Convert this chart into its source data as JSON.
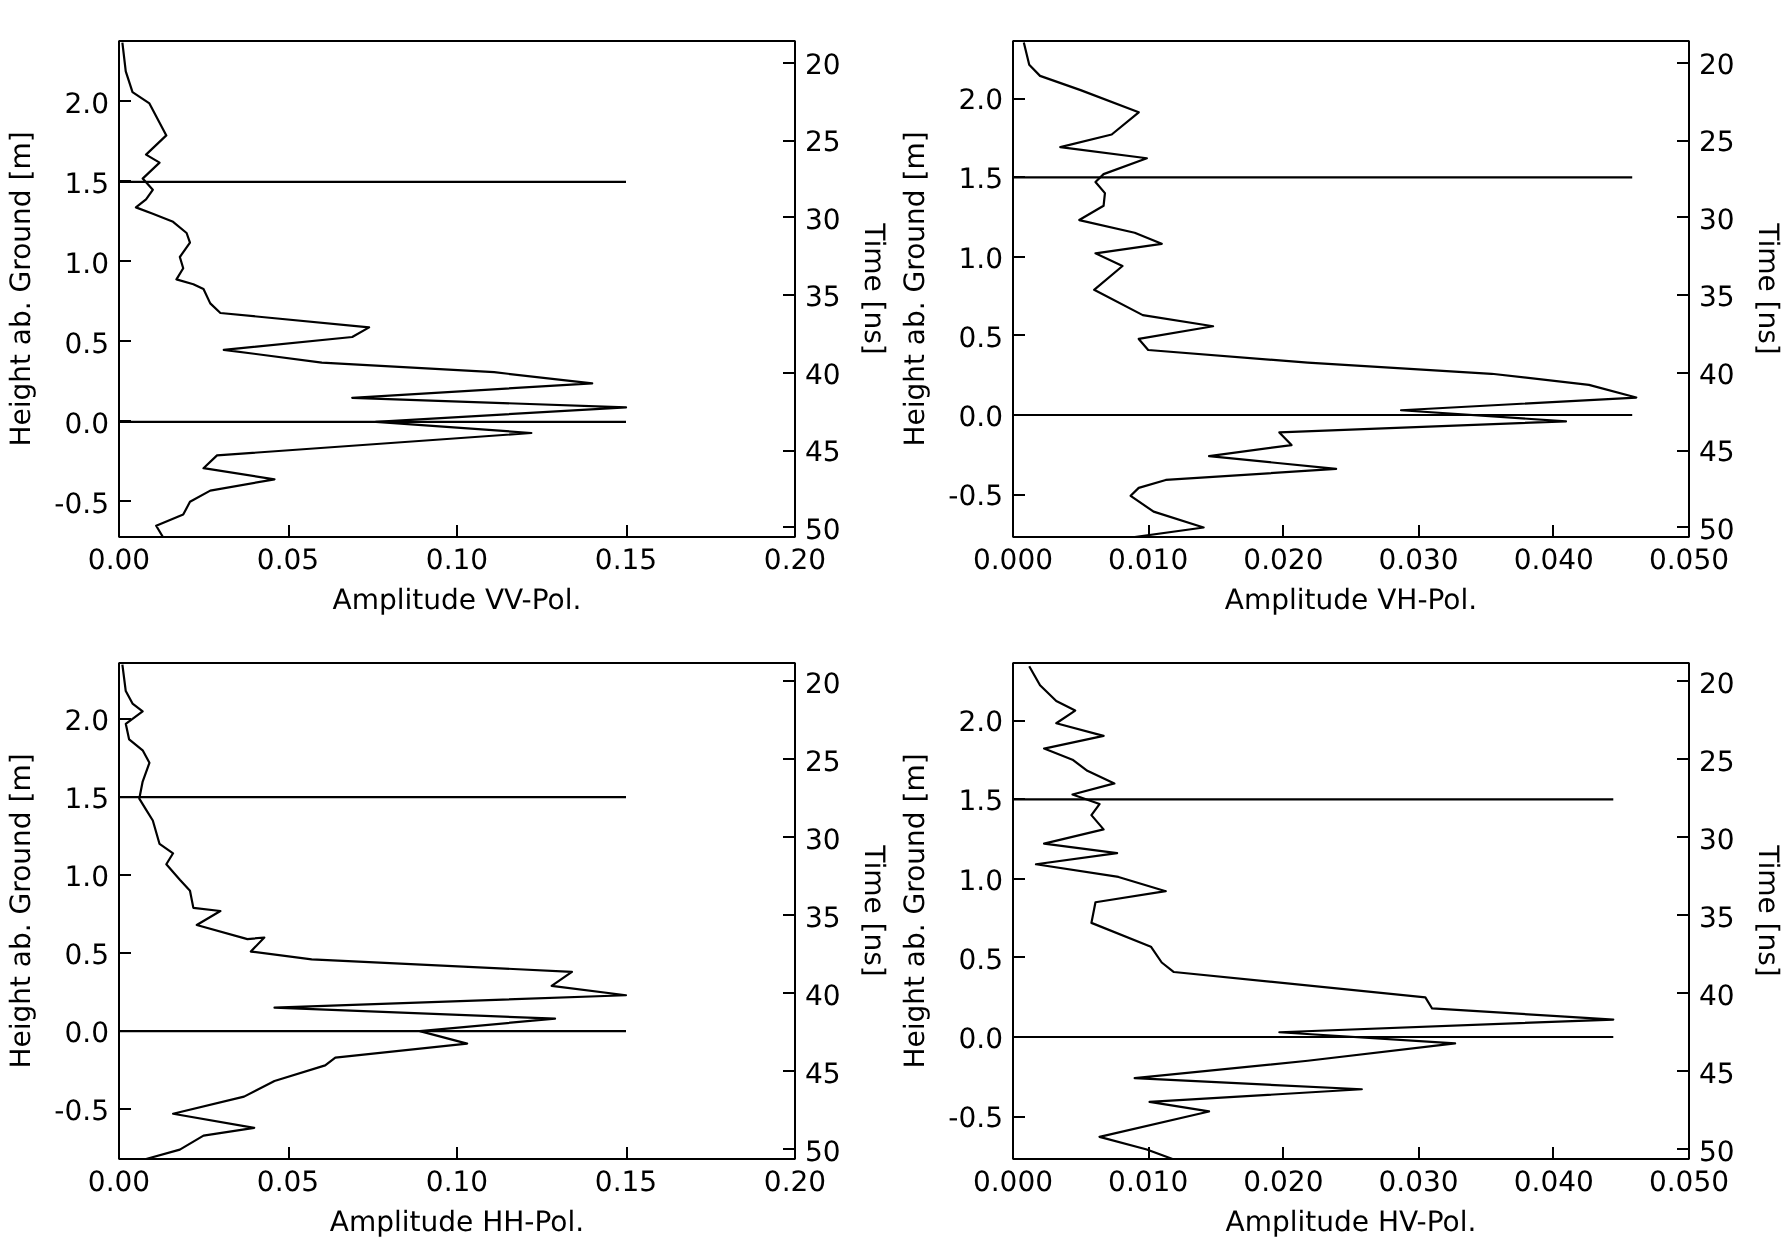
{
  "chart_data": [
    {
      "type": "line",
      "xlabel": "Amplitude VV-Pol.",
      "ylabel": "Height ab. Ground [m]",
      "y2label": "Time [ns]",
      "grid": false,
      "xlim": [
        0,
        0.2
      ],
      "xticks": [
        {
          "value": 0,
          "label": "0.00"
        },
        {
          "value": 0.05,
          "label": "0.05"
        },
        {
          "value": 0.1,
          "label": "0.10"
        },
        {
          "value": 0.15,
          "label": "0.15"
        },
        {
          "value": 0.2,
          "label": "0.20"
        }
      ],
      "ylim": [
        -0.72,
        2.38
      ],
      "yticks": [
        {
          "value": -0.5,
          "label": "-0.5"
        },
        {
          "value": 0,
          "label": "0.0"
        },
        {
          "value": 0.5,
          "label": "0.5"
        },
        {
          "value": 1,
          "label": "1.0"
        },
        {
          "value": 1.5,
          "label": "1.5"
        },
        {
          "value": 2,
          "label": "2.0"
        }
      ],
      "y2lim": [
        50.6,
        18.6
      ],
      "y2ticks": [
        20,
        25,
        30,
        35,
        40,
        45,
        50
      ],
      "series": [
        {
          "color": "#000000",
          "x": [
            0.001,
            0.002,
            0.004,
            0.009,
            0.014,
            0.008,
            0.012,
            0.007,
            0.01,
            0.008,
            0.005,
            0.01,
            0.016,
            0.02,
            0.021,
            0.018,
            0.019,
            0.017,
            0.022,
            0.025,
            0.027,
            0.03,
            0.074,
            0.069,
            0.031,
            0.06,
            0.111,
            0.14,
            0.069,
            0.15,
            0.076,
            0.122,
            0.029,
            0.025,
            0.046,
            0.027,
            0.021,
            0.019,
            0.011,
            0.013
          ],
          "values": [
            2.37,
            2.19,
            2.06,
            1.99,
            1.79,
            1.67,
            1.62,
            1.52,
            1.45,
            1.39,
            1.34,
            1.3,
            1.25,
            1.18,
            1.12,
            1.03,
            0.96,
            0.89,
            0.86,
            0.83,
            0.74,
            0.68,
            0.59,
            0.53,
            0.45,
            0.37,
            0.31,
            0.24,
            0.15,
            0.09,
            0.0,
            -0.07,
            -0.21,
            -0.29,
            -0.36,
            -0.43,
            -0.5,
            -0.58,
            -0.65,
            -0.72
          ]
        },
        {
          "color": "#000000",
          "x": [
            0,
            0.15
          ],
          "values": [
            1.5,
            1.5
          ]
        },
        {
          "color": "#000000",
          "x": [
            0,
            0.15
          ],
          "values": [
            0,
            0
          ]
        }
      ]
    },
    {
      "type": "line",
      "xlabel": "Amplitude VH-Pol.",
      "ylabel": "Height ab. Ground [m]",
      "y2label": "Time [ns]",
      "grid": false,
      "xlim": [
        0,
        0.05
      ],
      "xticks": [
        {
          "value": 0,
          "label": "0.000"
        },
        {
          "value": 0.01,
          "label": "0.010"
        },
        {
          "value": 0.02,
          "label": "0.020"
        },
        {
          "value": 0.03,
          "label": "0.030"
        },
        {
          "value": 0.04,
          "label": "0.040"
        },
        {
          "value": 0.05,
          "label": "0.050"
        }
      ],
      "ylim": [
        -0.77,
        2.36
      ],
      "yticks": [
        {
          "value": -0.5,
          "label": "-0.5"
        },
        {
          "value": 0,
          "label": "0.0"
        },
        {
          "value": 0.5,
          "label": "0.5"
        },
        {
          "value": 1,
          "label": "1.0"
        },
        {
          "value": 1.5,
          "label": "1.5"
        },
        {
          "value": 2,
          "label": "2.0"
        }
      ],
      "y2lim": [
        50.6,
        18.6
      ],
      "y2ticks": [
        20,
        25,
        30,
        35,
        40,
        45,
        50
      ],
      "series": [
        {
          "color": "#000000",
          "x": [
            0.0008,
            0.0012,
            0.002,
            0.005,
            0.0093,
            0.0073,
            0.0035,
            0.0099,
            0.0067,
            0.0061,
            0.0068,
            0.0067,
            0.0049,
            0.009,
            0.011,
            0.0061,
            0.0081,
            0.006,
            0.0096,
            0.0148,
            0.0093,
            0.01,
            0.0218,
            0.0354,
            0.0426,
            0.0461,
            0.0287,
            0.0409,
            0.0197,
            0.0206,
            0.0145,
            0.0239,
            0.0113,
            0.0093,
            0.0087,
            0.0104,
            0.0141,
            0.009
          ],
          "values": [
            2.35,
            2.21,
            2.14,
            2.05,
            1.91,
            1.77,
            1.69,
            1.62,
            1.52,
            1.47,
            1.4,
            1.32,
            1.23,
            1.15,
            1.08,
            1.02,
            0.94,
            0.79,
            0.63,
            0.56,
            0.48,
            0.41,
            0.33,
            0.26,
            0.19,
            0.11,
            0.03,
            -0.04,
            -0.11,
            -0.19,
            -0.26,
            -0.34,
            -0.41,
            -0.46,
            -0.51,
            -0.61,
            -0.71,
            -0.77
          ]
        },
        {
          "color": "#000000",
          "x": [
            0,
            0.0458
          ],
          "values": [
            1.5,
            1.5
          ]
        },
        {
          "color": "#000000",
          "x": [
            0,
            0.0458
          ],
          "values": [
            0,
            0
          ]
        }
      ]
    },
    {
      "type": "line",
      "xlabel": "Amplitude HH-Pol.",
      "ylabel": "Height ab. Ground [m]",
      "y2label": "Time [ns]",
      "grid": false,
      "xlim": [
        0,
        0.2
      ],
      "xticks": [
        {
          "value": 0,
          "label": "0.00"
        },
        {
          "value": 0.05,
          "label": "0.05"
        },
        {
          "value": 0.1,
          "label": "0.10"
        },
        {
          "value": 0.15,
          "label": "0.15"
        },
        {
          "value": 0.2,
          "label": "0.20"
        }
      ],
      "ylim": [
        -0.82,
        2.36
      ],
      "yticks": [
        {
          "value": -0.5,
          "label": "-0.5"
        },
        {
          "value": 0,
          "label": "0.0"
        },
        {
          "value": 0.5,
          "label": "0.5"
        },
        {
          "value": 1,
          "label": "1.0"
        },
        {
          "value": 1.5,
          "label": "1.5"
        },
        {
          "value": 2,
          "label": "2.0"
        }
      ],
      "y2lim": [
        50.6,
        18.8
      ],
      "y2ticks": [
        20,
        25,
        30,
        35,
        40,
        45,
        50
      ],
      "series": [
        {
          "color": "#000000",
          "x": [
            0.001,
            0.002,
            0.004,
            0.007,
            0.002,
            0.003,
            0.007,
            0.009,
            0.007,
            0.006,
            0.008,
            0.01,
            0.012,
            0.016,
            0.014,
            0.018,
            0.021,
            0.022,
            0.03,
            0.023,
            0.038,
            0.043,
            0.039,
            0.057,
            0.134,
            0.128,
            0.15,
            0.046,
            0.129,
            0.089,
            0.103,
            0.064,
            0.061,
            0.046,
            0.037,
            0.016,
            0.04,
            0.025,
            0.018,
            0.008
          ],
          "values": [
            2.35,
            2.18,
            2.1,
            2.05,
            1.97,
            1.87,
            1.8,
            1.72,
            1.6,
            1.49,
            1.42,
            1.35,
            1.2,
            1.14,
            1.07,
            0.97,
            0.9,
            0.79,
            0.77,
            0.68,
            0.59,
            0.6,
            0.51,
            0.46,
            0.38,
            0.29,
            0.23,
            0.15,
            0.08,
            0.0,
            -0.08,
            -0.17,
            -0.22,
            -0.32,
            -0.42,
            -0.53,
            -0.62,
            -0.67,
            -0.76,
            -0.82
          ]
        },
        {
          "color": "#000000",
          "x": [
            0,
            0.15
          ],
          "values": [
            1.5,
            1.5
          ]
        },
        {
          "color": "#000000",
          "x": [
            0,
            0.15
          ],
          "values": [
            0,
            0
          ]
        }
      ]
    },
    {
      "type": "line",
      "xlabel": "Amplitude HV-Pol.",
      "ylabel": "Height ab. Ground [m]",
      "y2label": "Time [ns]",
      "grid": false,
      "xlim": [
        0,
        0.05
      ],
      "xticks": [
        {
          "value": 0,
          "label": "0.000"
        },
        {
          "value": 0.01,
          "label": "0.010"
        },
        {
          "value": 0.02,
          "label": "0.020"
        },
        {
          "value": 0.03,
          "label": "0.030"
        },
        {
          "value": 0.04,
          "label": "0.040"
        },
        {
          "value": 0.05,
          "label": "0.050"
        }
      ],
      "ylim": [
        -0.77,
        2.36
      ],
      "yticks": [
        {
          "value": -0.5,
          "label": "-0.5"
        },
        {
          "value": 0,
          "label": "0.0"
        },
        {
          "value": 0.5,
          "label": "0.5"
        },
        {
          "value": 1,
          "label": "1.0"
        },
        {
          "value": 1.5,
          "label": "1.5"
        },
        {
          "value": 2,
          "label": "2.0"
        }
      ],
      "y2lim": [
        50.6,
        18.8
      ],
      "y2ticks": [
        20,
        25,
        30,
        35,
        40,
        45,
        50
      ],
      "series": [
        {
          "color": "#000000",
          "x": [
            0.0012,
            0.002,
            0.0032,
            0.0046,
            0.0032,
            0.0067,
            0.0023,
            0.0044,
            0.0055,
            0.0075,
            0.0044,
            0.0064,
            0.0058,
            0.0067,
            0.0023,
            0.0077,
            0.0017,
            0.0078,
            0.0113,
            0.0061,
            0.0058,
            0.0102,
            0.011,
            0.0119,
            0.0305,
            0.031,
            0.0444,
            0.0197,
            0.0327,
            0.0218,
            0.009,
            0.0258,
            0.0101,
            0.0145,
            0.0064,
            0.0099,
            0.0118
          ],
          "values": [
            2.34,
            2.22,
            2.12,
            2.06,
            1.98,
            1.9,
            1.82,
            1.75,
            1.68,
            1.6,
            1.53,
            1.47,
            1.4,
            1.31,
            1.22,
            1.16,
            1.09,
            1.01,
            0.92,
            0.85,
            0.72,
            0.57,
            0.47,
            0.41,
            0.25,
            0.18,
            0.11,
            0.03,
            -0.04,
            -0.15,
            -0.26,
            -0.33,
            -0.41,
            -0.47,
            -0.63,
            -0.71,
            -0.77
          ]
        },
        {
          "color": "#000000",
          "x": [
            0,
            0.0444
          ],
          "values": [
            1.5,
            1.5
          ]
        },
        {
          "color": "#000000",
          "x": [
            0,
            0.0444
          ],
          "values": [
            0,
            0
          ]
        }
      ]
    }
  ]
}
